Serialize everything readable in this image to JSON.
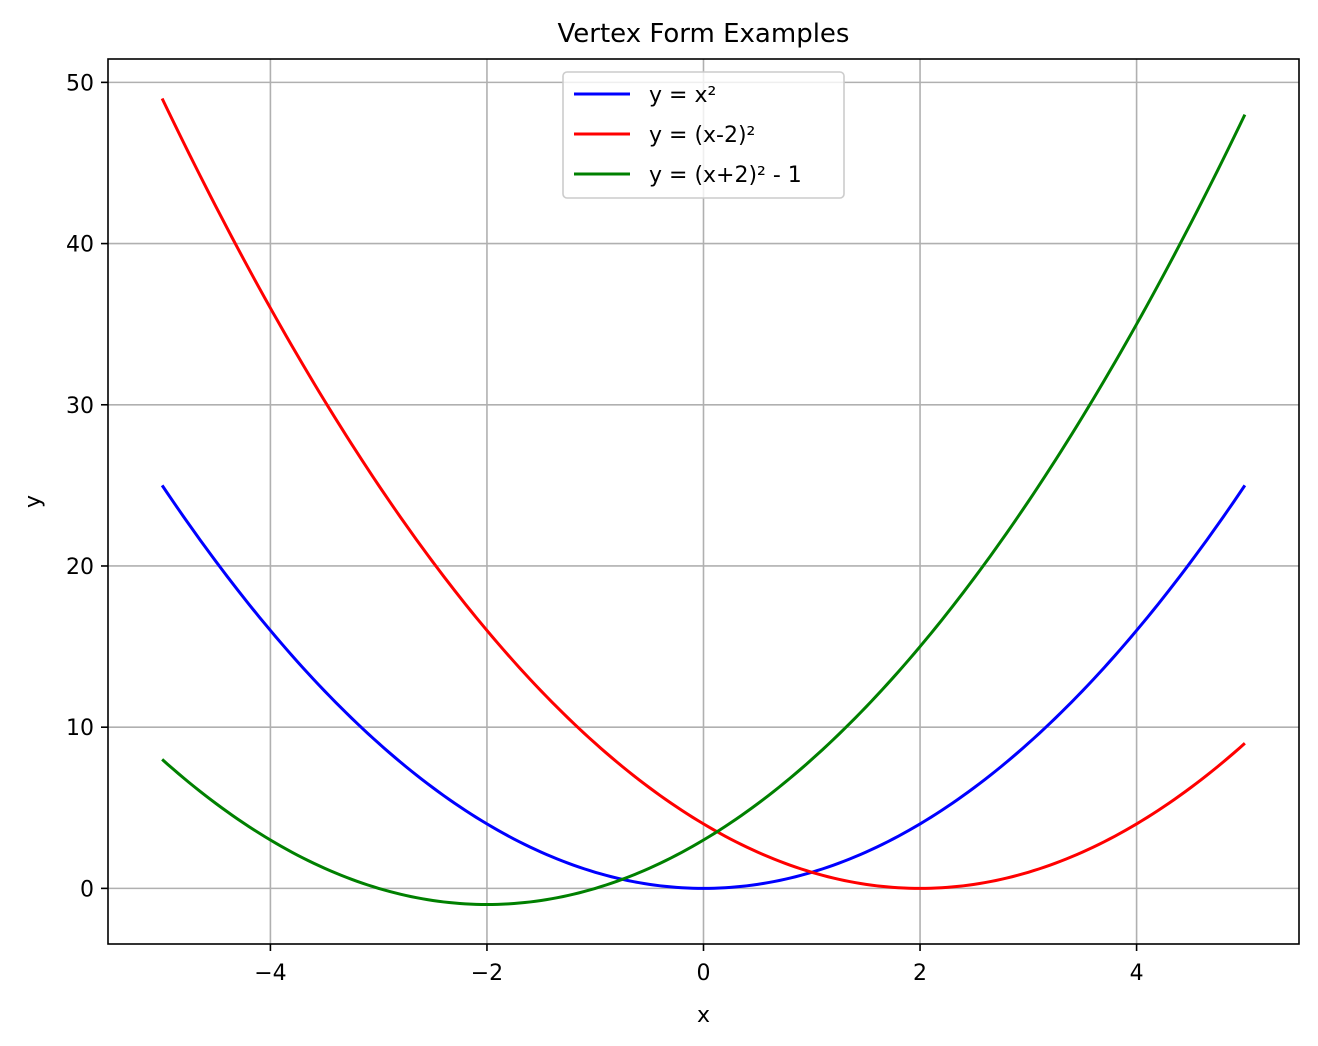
{
  "chart_data": {
    "type": "line",
    "title": "Vertex Form Examples",
    "xlabel": "x",
    "ylabel": "y",
    "xlim": [
      -5.5,
      5.5
    ],
    "ylim": [
      -3.45,
      51.45
    ],
    "xticks": [
      -4,
      -2,
      0,
      2,
      4
    ],
    "xtick_labels": [
      "−4",
      "−2",
      "0",
      "2",
      "4"
    ],
    "yticks": [
      0,
      10,
      20,
      30,
      40,
      50
    ],
    "ytick_labels": [
      "0",
      "10",
      "20",
      "30",
      "40",
      "50"
    ],
    "grid": true,
    "legend_position": "upper center",
    "x": [
      -5,
      -4.5,
      -4,
      -3.5,
      -3,
      -2.5,
      -2,
      -1.5,
      -1,
      -0.5,
      0,
      0.5,
      1,
      1.5,
      2,
      2.5,
      3,
      3.5,
      4,
      4.5,
      5
    ],
    "series": [
      {
        "name": "y = x²",
        "color": "#0000ff",
        "values": [
          25,
          20.25,
          16,
          12.25,
          9,
          6.25,
          4,
          2.25,
          1,
          0.25,
          0,
          0.25,
          1,
          2.25,
          4,
          6.25,
          9,
          12.25,
          16,
          20.25,
          25
        ]
      },
      {
        "name": "y = (x-2)²",
        "color": "#ff0000",
        "values": [
          49,
          42.25,
          36,
          30.25,
          25,
          20.25,
          16,
          12.25,
          9,
          6.25,
          4,
          2.25,
          1,
          0.25,
          0,
          0.25,
          1,
          2.25,
          4,
          6.25,
          9
        ]
      },
      {
        "name": "y = (x+2)² - 1",
        "color": "#008000",
        "values": [
          8,
          5.25,
          3,
          1.25,
          0,
          -0.75,
          -1,
          -0.75,
          0,
          1.25,
          3,
          5.25,
          8,
          11.25,
          15,
          19.25,
          24,
          29.25,
          35,
          41.25,
          48
        ]
      }
    ]
  }
}
